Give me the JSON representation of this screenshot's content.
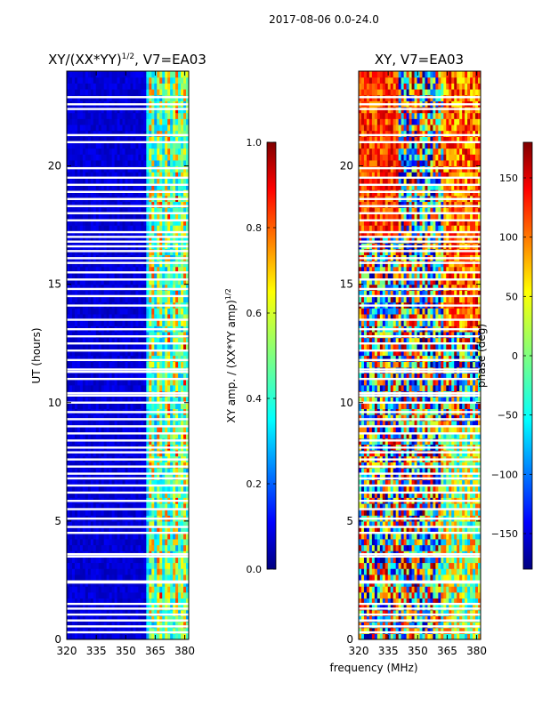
{
  "suptitle": "2017-08-06 0.0-24.0",
  "shared_xlabel": "frequency (MHz)",
  "colors": {
    "gap": "#ffffff",
    "frame": "#000000"
  },
  "chart_data": [
    {
      "type": "heatmap",
      "title_main": "XY/(XX*YY)",
      "title_exp": "1/2",
      "title_suffix": ", V7=EA03",
      "xlabel": "",
      "ylabel": "UT (hours)",
      "xlim": [
        320,
        382
      ],
      "ylim": [
        0,
        24
      ],
      "xticks": [
        320,
        335,
        350,
        365,
        380
      ],
      "yticks": [
        0,
        5,
        10,
        15,
        20
      ],
      "colormap": "jet",
      "colorbar": {
        "label_main": "XY amp. / (XX*YY amp)",
        "label_exp": "1/2",
        "range": [
          0.0,
          1.0
        ],
        "ticks": [
          "0.0",
          "0.2",
          "0.4",
          "0.6",
          "0.8",
          "1.0"
        ],
        "tick_values": [
          0.0,
          0.2,
          0.4,
          0.6,
          0.8,
          1.0
        ]
      }
    },
    {
      "type": "heatmap",
      "title_main": "XY, V7=EA03",
      "xlabel": "frequency (MHz)",
      "ylabel": "",
      "xlim": [
        320,
        382
      ],
      "ylim": [
        0,
        24
      ],
      "xticks": [
        320,
        335,
        350,
        365,
        380
      ],
      "yticks": [
        0,
        5,
        10,
        15,
        20
      ],
      "colormap": "jet",
      "colorbar": {
        "label_main": "phase (deg)",
        "range": [
          -180,
          180
        ],
        "ticks": [
          "−150",
          "−100",
          "−50",
          "0",
          "50",
          "100",
          "150"
        ],
        "tick_values": [
          -150,
          -100,
          -50,
          0,
          50,
          100,
          150
        ]
      }
    }
  ],
  "gap_hours": [
    0.3,
    0.55,
    0.8,
    1.05,
    1.3,
    1.5,
    2.4,
    2.45,
    3.5,
    3.6,
    4.5,
    4.75,
    5.1,
    5.5,
    5.85,
    6.2,
    6.5,
    6.8,
    7.0,
    7.3,
    7.6,
    7.9,
    8.1,
    8.4,
    8.7,
    9.0,
    9.3,
    9.6,
    10.0,
    10.3,
    10.4,
    11.0,
    11.3,
    11.4,
    11.8,
    12.2,
    12.5,
    12.8,
    13.1,
    13.5,
    14.1,
    14.5,
    14.8,
    15.2,
    15.5,
    15.9,
    16.1,
    16.4,
    16.6,
    16.8,
    17.0,
    17.2,
    17.7,
    18.0,
    18.3,
    18.6,
    18.9,
    19.2,
    19.5,
    19.9,
    21.0,
    21.3,
    22.4,
    22.6,
    22.9
  ]
}
